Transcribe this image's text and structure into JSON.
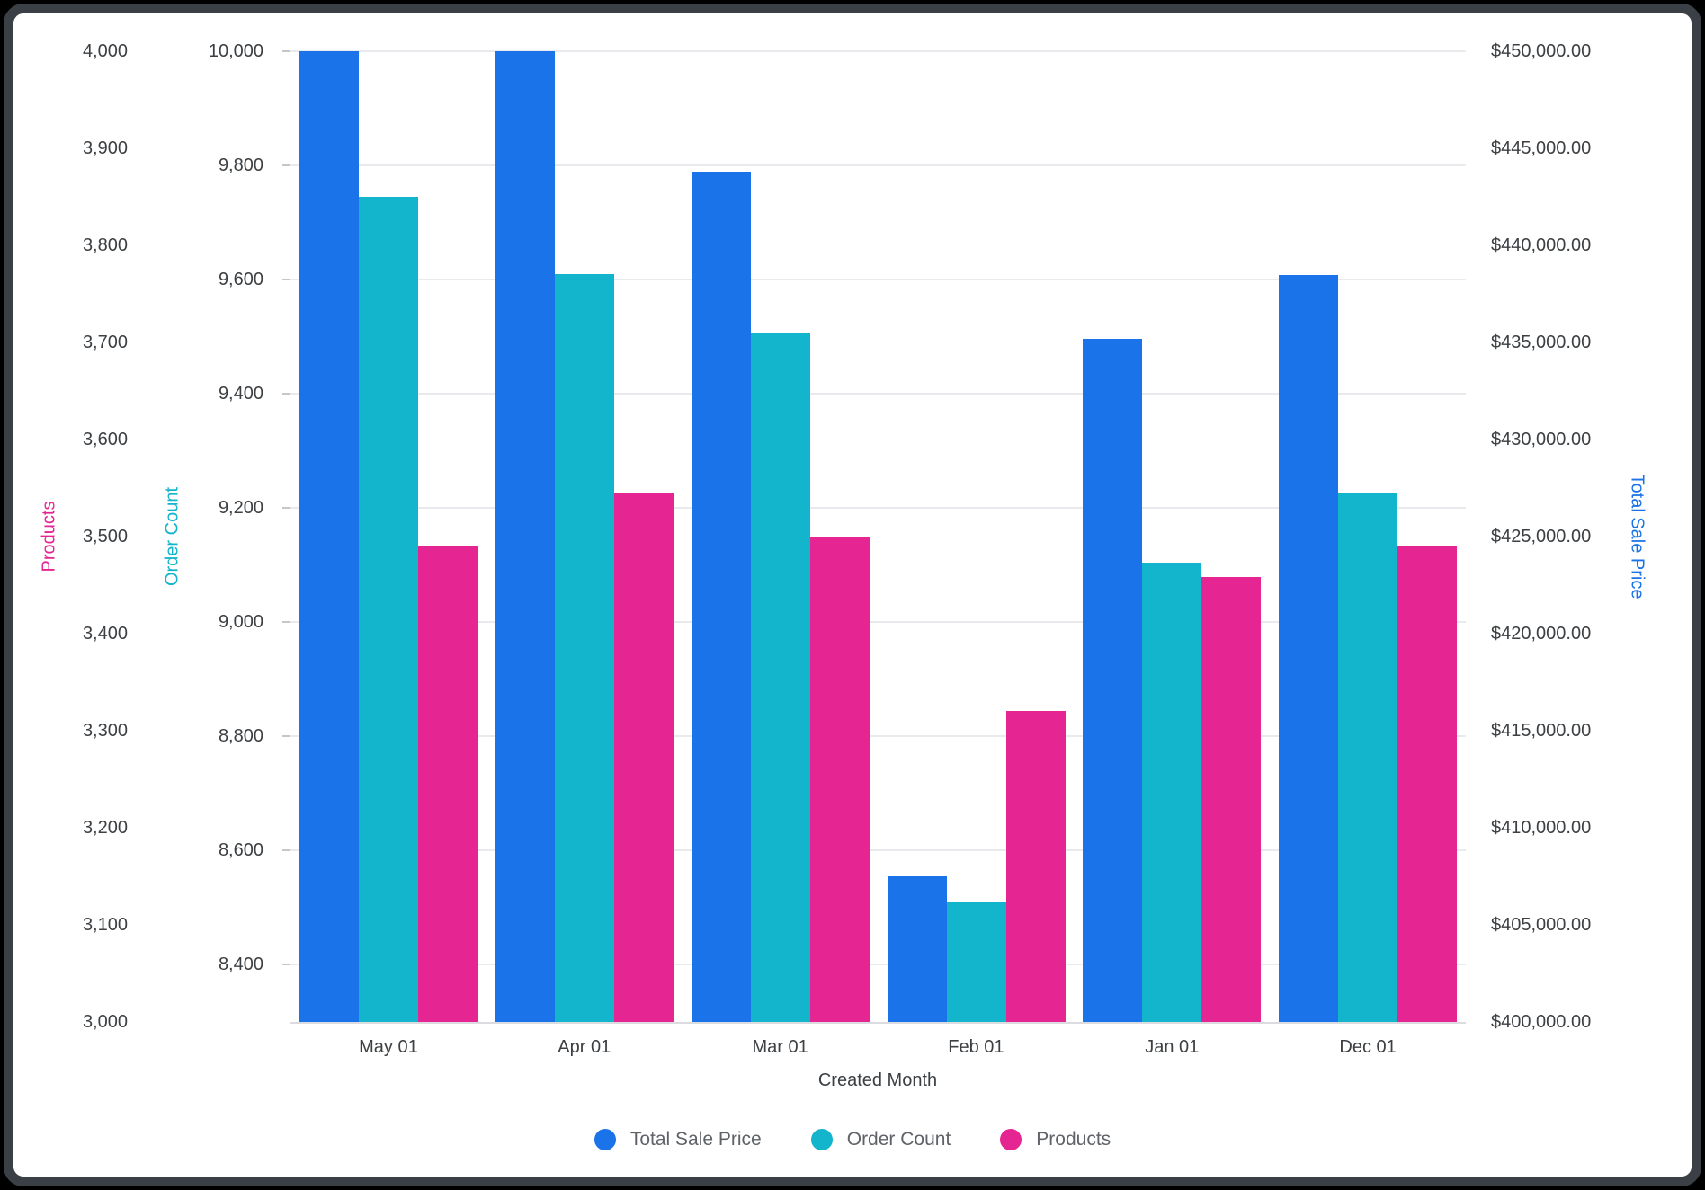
{
  "chart_data": {
    "type": "bar",
    "categories": [
      "May 01",
      "Apr 01",
      "Mar 01",
      "Feb 01",
      "Jan 01",
      "Dec 01"
    ],
    "series": [
      {
        "name": "Total Sale Price",
        "axis": "price",
        "color": "#1a73e8",
        "values": [
          450000,
          450000,
          443800,
          407500,
          435200,
          438450
        ]
      },
      {
        "name": "Order Count",
        "axis": "count",
        "color": "#12b5cb",
        "values": [
          9745,
          9610,
          9505,
          8510,
          9105,
          9225
        ]
      },
      {
        "name": "Products",
        "axis": "products",
        "color": "#e52592",
        "values": [
          3490,
          3545,
          3500,
          3320,
          3458,
          3490
        ]
      }
    ],
    "xlabel": "Created Month",
    "grid": "on",
    "legend_position": "bottom",
    "axes": {
      "products": {
        "title": "Products",
        "color": "#e52592",
        "side": "left-outer",
        "min": 3000,
        "max": 4000,
        "ticks": [
          {
            "value": 4000,
            "label": "4,000"
          },
          {
            "value": 3900,
            "label": "3,900"
          },
          {
            "value": 3800,
            "label": "3,800"
          },
          {
            "value": 3700,
            "label": "3,700"
          },
          {
            "value": 3600,
            "label": "3,600"
          },
          {
            "value": 3500,
            "label": "3,500"
          },
          {
            "value": 3400,
            "label": "3,400"
          },
          {
            "value": 3300,
            "label": "3,300"
          },
          {
            "value": 3200,
            "label": "3,200"
          },
          {
            "value": 3100,
            "label": "3,100"
          },
          {
            "value": 3000,
            "label": "3,000"
          }
        ]
      },
      "count": {
        "title": "Order Count",
        "color": "#12b5cb",
        "side": "left-inner",
        "min": 8300,
        "max": 10000,
        "ticks": [
          {
            "value": 10000,
            "label": "10,000"
          },
          {
            "value": 9800,
            "label": "9,800"
          },
          {
            "value": 9600,
            "label": "9,600"
          },
          {
            "value": 9400,
            "label": "9,400"
          },
          {
            "value": 9200,
            "label": "9,200"
          },
          {
            "value": 9000,
            "label": "9,000"
          },
          {
            "value": 8800,
            "label": "8,800"
          },
          {
            "value": 8600,
            "label": "8,600"
          },
          {
            "value": 8400,
            "label": "8,400"
          }
        ]
      },
      "price": {
        "title": "Total Sale Price",
        "color": "#1a73e8",
        "side": "right",
        "min": 400000,
        "max": 450000,
        "ticks": [
          {
            "value": 450000,
            "label": "$450,000.00"
          },
          {
            "value": 445000,
            "label": "$445,000.00"
          },
          {
            "value": 440000,
            "label": "$440,000.00"
          },
          {
            "value": 435000,
            "label": "$435,000.00"
          },
          {
            "value": 430000,
            "label": "$430,000.00"
          },
          {
            "value": 425000,
            "label": "$425,000.00"
          },
          {
            "value": 420000,
            "label": "$420,000.00"
          },
          {
            "value": 415000,
            "label": "$415,000.00"
          },
          {
            "value": 410000,
            "label": "$410,000.00"
          },
          {
            "value": 405000,
            "label": "$405,000.00"
          },
          {
            "value": 400000,
            "label": "$400,000.00"
          }
        ]
      }
    },
    "legend": [
      {
        "label": "Total Sale Price",
        "color": "#1a73e8"
      },
      {
        "label": "Order Count",
        "color": "#12b5cb"
      },
      {
        "label": "Products",
        "color": "#e52592"
      }
    ]
  }
}
